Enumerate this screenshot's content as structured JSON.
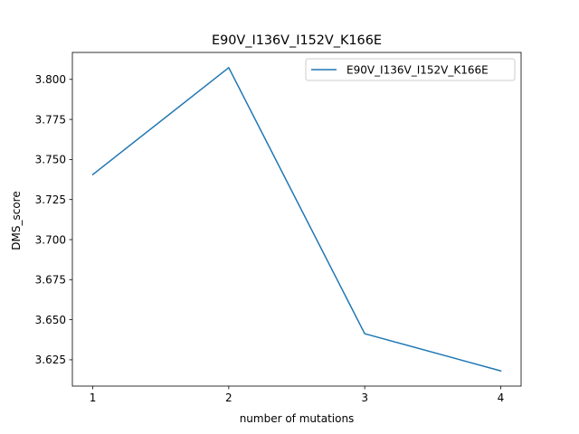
{
  "chart_data": {
    "type": "line",
    "title": "E90V_I136V_I152V_K166E",
    "xlabel": "number of mutations",
    "ylabel": "DMS_score",
    "x": [
      1,
      2,
      3,
      4
    ],
    "series": [
      {
        "name": "E90V_I136V_I152V_K166E",
        "values": [
          3.7406,
          3.8073,
          3.6413,
          3.6181
        ],
        "color": "#1f77b4"
      }
    ],
    "xticks": [
      "1",
      "2",
      "3",
      "4"
    ],
    "yticks": [
      "3.625",
      "3.650",
      "3.675",
      "3.700",
      "3.725",
      "3.750",
      "3.775",
      "3.800"
    ],
    "xlim": [
      0.85,
      4.15
    ],
    "ylim": [
      3.6086,
      3.8168
    ],
    "grid": false,
    "legend_position": "top-right"
  }
}
